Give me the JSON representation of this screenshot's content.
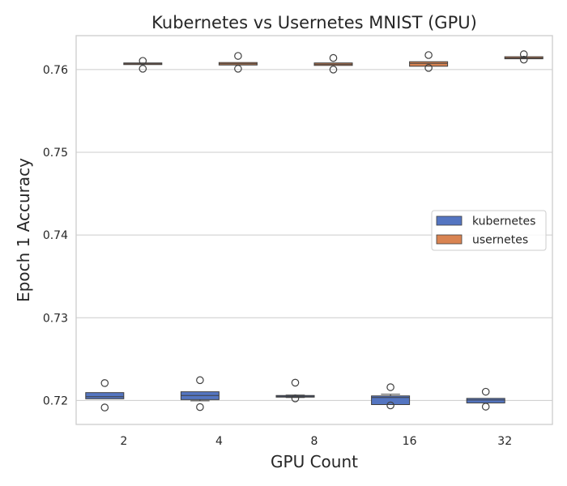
{
  "chart_data": {
    "type": "box",
    "title": "Kubernetes vs Usernetes MNIST (GPU)",
    "xlabel": "GPU Count",
    "ylabel": "Epoch 1 Accuracy",
    "categories": [
      "2",
      "4",
      "8",
      "16",
      "32"
    ],
    "ylim": [
      0.7171,
      0.7641
    ],
    "yticks": [
      0.72,
      0.73,
      0.74,
      0.75,
      0.76
    ],
    "ytick_labels": [
      "0.72",
      "0.73",
      "0.74",
      "0.75",
      "0.76"
    ],
    "grid": "horizontal",
    "legend_position": "center-right",
    "series": [
      {
        "name": "kubernetes",
        "color": "#5475c1",
        "boxes": [
          {
            "whislo": 0.7202,
            "q1": 0.7202,
            "med": 0.72045,
            "q3": 0.72095,
            "whishi": 0.72095,
            "fliers": [
              0.7221,
              0.71915
            ]
          },
          {
            "whislo": 0.71995,
            "q1": 0.7201,
            "med": 0.7206,
            "q3": 0.72105,
            "whishi": 0.72105,
            "fliers": [
              0.72245,
              0.7192
            ]
          },
          {
            "whislo": 0.72035,
            "q1": 0.7204,
            "med": 0.7205,
            "q3": 0.7206,
            "whishi": 0.72065,
            "fliers": [
              0.72215,
              0.72025
            ]
          },
          {
            "whislo": 0.7195,
            "q1": 0.7195,
            "med": 0.72035,
            "q3": 0.72055,
            "whishi": 0.72075,
            "fliers": [
              0.7216,
              0.7194
            ]
          },
          {
            "whislo": 0.7197,
            "q1": 0.7197,
            "med": 0.72005,
            "q3": 0.72025,
            "whishi": 0.72025,
            "fliers": [
              0.72105,
              0.71925
            ]
          }
        ]
      },
      {
        "name": "usernetes",
        "color": "#d98452",
        "boxes": [
          {
            "whislo": 0.7606,
            "q1": 0.7606,
            "med": 0.7607,
            "q3": 0.7608,
            "whishi": 0.7608,
            "fliers": [
              0.76105,
              0.7601
            ]
          },
          {
            "whislo": 0.76055,
            "q1": 0.76055,
            "med": 0.7607,
            "q3": 0.76085,
            "whishi": 0.76085,
            "fliers": [
              0.76165,
              0.7601
            ]
          },
          {
            "whislo": 0.7605,
            "q1": 0.7605,
            "med": 0.76065,
            "q3": 0.7608,
            "whishi": 0.7608,
            "fliers": [
              0.7614,
              0.76
            ]
          },
          {
            "whislo": 0.7604,
            "q1": 0.7604,
            "med": 0.76075,
            "q3": 0.76095,
            "whishi": 0.76095,
            "fliers": [
              0.76175,
              0.7602
            ]
          },
          {
            "whislo": 0.7613,
            "q1": 0.7613,
            "med": 0.7614,
            "q3": 0.76155,
            "whishi": 0.76155,
            "fliers": [
              0.76185,
              0.7612
            ]
          }
        ]
      }
    ]
  }
}
